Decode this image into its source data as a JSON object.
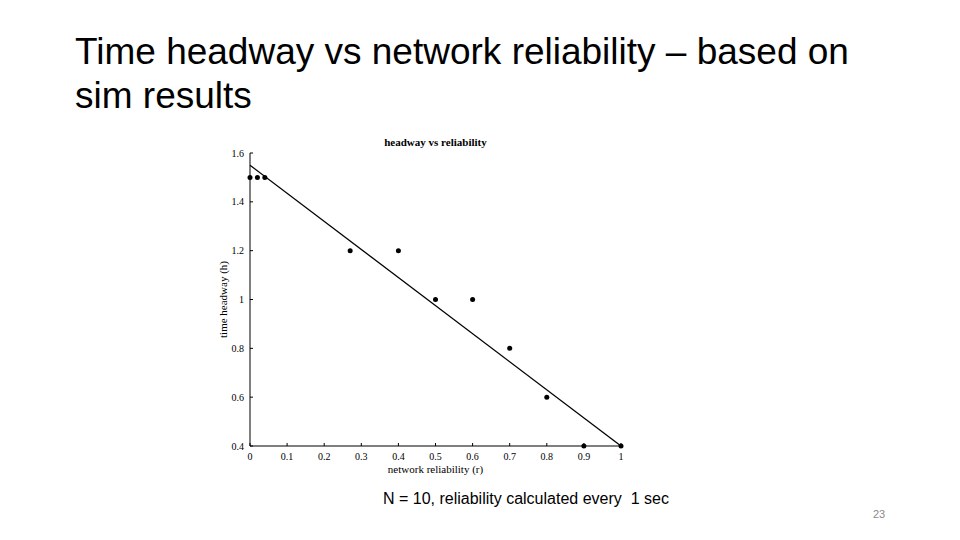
{
  "slide": {
    "title": "Time headway vs network reliability – based on sim results",
    "caption": "N = 10, reliability calculated every  1 sec",
    "page_number": 23
  },
  "chart_data": {
    "type": "scatter",
    "title": "headway vs reliability",
    "x_label": "network reliability (r)",
    "y_label": "time headway (h)",
    "xlim": [
      0,
      1
    ],
    "xticks": [
      0,
      0.1,
      0.2,
      0.3,
      0.4,
      0.5,
      0.6,
      0.7,
      0.8,
      0.9,
      1
    ],
    "ylim": [
      0.4,
      1.6
    ],
    "yticks": [
      0.4,
      0.6,
      0.8,
      1,
      1.2,
      1.4,
      1.6
    ],
    "grid": false,
    "series": [
      {
        "type": "scatter",
        "marker": "circle",
        "color": "#000000",
        "x": [
          0,
          0.02,
          0.04,
          0.27,
          0.4,
          0.5,
          0.6,
          0.7,
          0.8,
          0.9,
          1
        ],
        "values": [
          1.5,
          1.5,
          1.5,
          1.2,
          1.2,
          1.0,
          1.0,
          0.8,
          0.6,
          0.4,
          0.4
        ]
      },
      {
        "type": "line",
        "line_style": "solid",
        "color": "#000000",
        "x": [
          0,
          1
        ],
        "values": [
          1.55,
          0.4
        ]
      }
    ]
  }
}
